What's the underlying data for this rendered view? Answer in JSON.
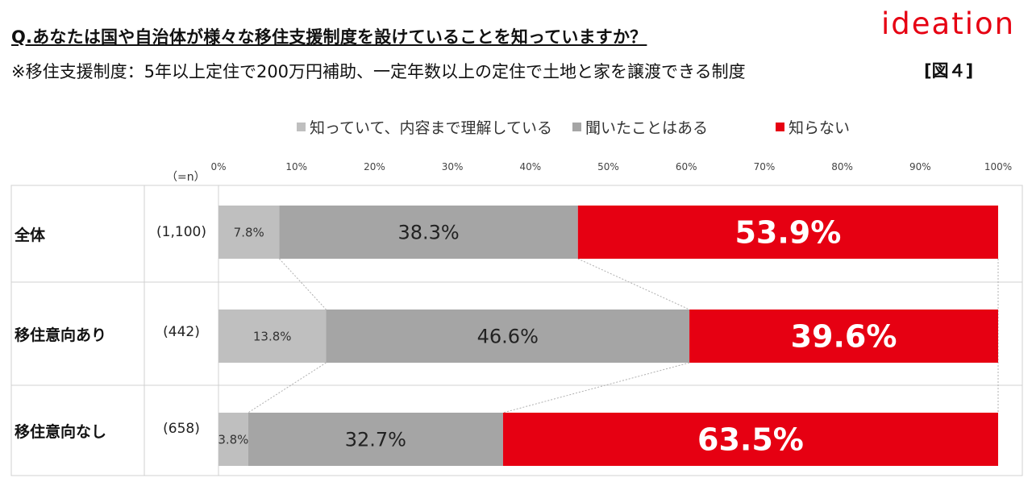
{
  "header": {
    "question": "Q.あなたは国や自治体が様々な移住支援制度を設けていることを知っていますか？",
    "note": "※移住支援制度：5年以上定住で200万円補助、一定年数以上の定住で土地と家を譲渡できる制度",
    "brand": "ideation",
    "figure_label": "[図４]"
  },
  "n_header": "（=n）",
  "colors": {
    "light_gray": "#bfbfbf",
    "mid_gray": "#a5a5a5",
    "red": "#e60012"
  },
  "chart_data": {
    "type": "bar",
    "orientation": "horizontal",
    "stacked": "100%",
    "x_ticks": [
      "0%",
      "10%",
      "20%",
      "30%",
      "40%",
      "50%",
      "60%",
      "70%",
      "80%",
      "90%",
      "100%"
    ],
    "xlim": [
      0,
      100
    ],
    "legend_position": "top",
    "categories": [
      "全体",
      "移住意向あり",
      "移住意向なし"
    ],
    "n": [
      "(1,100)",
      "(442)",
      "(658)"
    ],
    "series": [
      {
        "name": "知っていて、内容まで理解している",
        "color": "#bfbfbf",
        "values": [
          7.8,
          13.8,
          3.8
        ],
        "labels": [
          "7.8%",
          "13.8%",
          "3.8%"
        ]
      },
      {
        "name": "聞いたことはある",
        "color": "#a5a5a5",
        "values": [
          38.3,
          46.6,
          32.7
        ],
        "labels": [
          "38.3%",
          "46.6%",
          "32.7%"
        ]
      },
      {
        "name": "知らない",
        "color": "#e60012",
        "values": [
          53.9,
          39.6,
          63.5
        ],
        "labels": [
          "53.9%",
          "39.6%",
          "63.5%"
        ]
      }
    ]
  }
}
